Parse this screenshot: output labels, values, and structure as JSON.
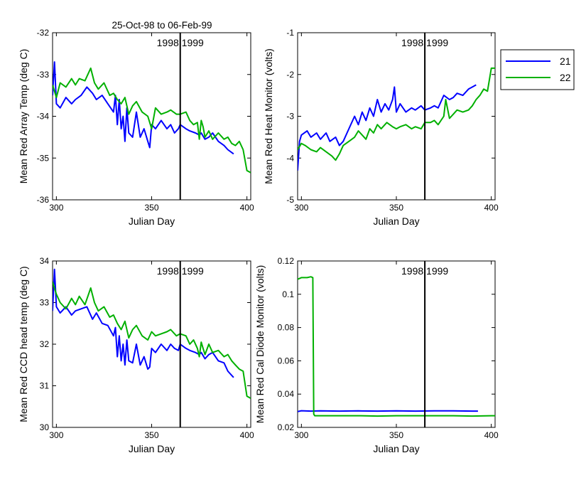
{
  "figure_title": "25-Oct-98 to 06-Feb-99",
  "legend": [
    {
      "label": "21",
      "color": "#0000ff"
    },
    {
      "label": "22",
      "color": "#00b000"
    }
  ],
  "chart_data": [
    {
      "type": "line",
      "xlabel": "Julian Day",
      "ylabel": "Mean Red Array Temp (deg C)",
      "xlim": [
        298,
        402
      ],
      "ylim": [
        -36,
        -32
      ],
      "xticks": [
        "300",
        "350",
        "400"
      ],
      "yticks": [
        "-36",
        "-35",
        "-34",
        "-33",
        "-32"
      ],
      "year_marker": {
        "x": 365,
        "label": "1998 1999"
      },
      "series": [
        {
          "name": "21",
          "color": "#0000ff",
          "x": [
            298,
            299,
            300,
            302,
            305,
            308,
            310,
            313,
            316,
            319,
            321,
            324,
            327,
            330,
            331,
            332,
            333,
            334,
            335,
            336,
            337,
            338,
            340,
            342,
            344,
            346,
            348,
            349,
            350,
            352,
            355,
            358,
            360,
            362,
            364,
            365,
            368,
            370,
            373,
            375,
            376,
            378,
            380,
            382,
            385,
            388,
            390,
            393
          ],
          "y": [
            -33.5,
            -32.7,
            -33.7,
            -33.8,
            -33.55,
            -33.7,
            -33.6,
            -33.5,
            -33.3,
            -33.45,
            -33.6,
            -33.5,
            -33.7,
            -33.9,
            -33.5,
            -34.2,
            -33.6,
            -34.3,
            -34.0,
            -34.6,
            -33.8,
            -34.4,
            -34.5,
            -33.9,
            -34.5,
            -34.3,
            -34.6,
            -34.75,
            -34.2,
            -34.3,
            -34.1,
            -34.3,
            -34.2,
            -34.4,
            -34.3,
            -34.2,
            -34.3,
            -34.35,
            -34.4,
            -34.45,
            -34.4,
            -34.55,
            -34.5,
            -34.4,
            -34.6,
            -34.7,
            -34.8,
            -34.9
          ]
        },
        {
          "name": "22",
          "color": "#00b000",
          "x": [
            298,
            300,
            302,
            305,
            308,
            310,
            312,
            315,
            318,
            320,
            322,
            325,
            328,
            330,
            332,
            334,
            336,
            338,
            340,
            342,
            345,
            348,
            350,
            352,
            355,
            358,
            360,
            363,
            365,
            368,
            370,
            372,
            374,
            375,
            376,
            377,
            378,
            380,
            382,
            385,
            388,
            390,
            392,
            394,
            396,
            398,
            400,
            402
          ],
          "y": [
            -33.25,
            -33.55,
            -33.2,
            -33.3,
            -33.1,
            -33.25,
            -33.1,
            -33.15,
            -32.85,
            -33.2,
            -33.35,
            -33.2,
            -33.5,
            -33.45,
            -33.6,
            -33.7,
            -33.55,
            -33.95,
            -33.75,
            -33.65,
            -33.9,
            -34.0,
            -34.3,
            -33.8,
            -33.95,
            -33.9,
            -33.85,
            -33.95,
            -33.95,
            -33.9,
            -34.1,
            -34.2,
            -34.15,
            -34.55,
            -34.1,
            -34.25,
            -34.5,
            -34.35,
            -34.55,
            -34.4,
            -34.55,
            -34.5,
            -34.65,
            -34.7,
            -34.6,
            -34.8,
            -35.3,
            -35.35
          ]
        }
      ]
    },
    {
      "type": "line",
      "xlabel": "Julian Day",
      "ylabel": "Mean Red Heat Monitor (volts)",
      "xlim": [
        298,
        402
      ],
      "ylim": [
        -5,
        -1
      ],
      "xticks": [
        "300",
        "350",
        "400"
      ],
      "yticks": [
        "-5",
        "-4",
        "-3",
        "-2",
        "-1"
      ],
      "year_marker": {
        "x": 365,
        "label": "1998 1999"
      },
      "series": [
        {
          "name": "21",
          "color": "#0000ff",
          "x": [
            298,
            299,
            300,
            303,
            305,
            308,
            310,
            313,
            315,
            318,
            320,
            322,
            325,
            328,
            330,
            332,
            334,
            336,
            338,
            340,
            342,
            344,
            346,
            348,
            349,
            350,
            352,
            355,
            358,
            360,
            363,
            365,
            368,
            370,
            372,
            375,
            378,
            380,
            382,
            385,
            388,
            390,
            392
          ],
          "y": [
            -4.3,
            -3.6,
            -3.45,
            -3.35,
            -3.5,
            -3.4,
            -3.55,
            -3.4,
            -3.6,
            -3.5,
            -3.7,
            -3.6,
            -3.3,
            -3.0,
            -3.2,
            -2.9,
            -3.1,
            -2.8,
            -3.0,
            -2.6,
            -2.9,
            -2.7,
            -2.85,
            -2.6,
            -2.3,
            -2.9,
            -2.7,
            -2.9,
            -2.8,
            -2.85,
            -2.75,
            -2.85,
            -2.8,
            -2.75,
            -2.8,
            -2.5,
            -2.6,
            -2.55,
            -2.45,
            -2.5,
            -2.35,
            -2.3,
            -2.25
          ]
        },
        {
          "name": "22",
          "color": "#00b000",
          "x": [
            298,
            300,
            302,
            305,
            308,
            310,
            313,
            316,
            318,
            320,
            322,
            325,
            328,
            330,
            332,
            334,
            336,
            338,
            340,
            342,
            345,
            348,
            350,
            352,
            355,
            358,
            360,
            363,
            365,
            368,
            370,
            372,
            375,
            376,
            378,
            380,
            382,
            385,
            388,
            390,
            392,
            394,
            396,
            398,
            400,
            402
          ],
          "y": [
            -3.8,
            -3.65,
            -3.7,
            -3.8,
            -3.85,
            -3.75,
            -3.85,
            -3.95,
            -4.05,
            -3.9,
            -3.7,
            -3.6,
            -3.5,
            -3.35,
            -3.45,
            -3.55,
            -3.3,
            -3.4,
            -3.2,
            -3.3,
            -3.15,
            -3.25,
            -3.3,
            -3.25,
            -3.2,
            -3.3,
            -3.25,
            -3.3,
            -3.15,
            -3.15,
            -3.1,
            -3.2,
            -3.0,
            -2.6,
            -3.05,
            -2.95,
            -2.85,
            -2.9,
            -2.85,
            -2.75,
            -2.6,
            -2.5,
            -2.35,
            -2.4,
            -1.85,
            -1.85
          ]
        }
      ]
    },
    {
      "type": "line",
      "xlabel": "Julian Day",
      "ylabel": "Mean Red CCD head temp (deg C)",
      "xlim": [
        298,
        402
      ],
      "ylim": [
        30,
        34
      ],
      "xticks": [
        "300",
        "350",
        "400"
      ],
      "yticks": [
        "30",
        "31",
        "32",
        "33",
        "34"
      ],
      "year_marker": {
        "x": 365,
        "label": "1998 1999"
      },
      "series": [
        {
          "name": "21",
          "color": "#0000ff",
          "x": [
            298,
            299,
            300,
            302,
            305,
            308,
            310,
            313,
            316,
            319,
            321,
            324,
            327,
            330,
            331,
            332,
            333,
            334,
            335,
            336,
            337,
            338,
            340,
            342,
            344,
            346,
            348,
            349,
            350,
            352,
            355,
            358,
            360,
            362,
            364,
            365,
            368,
            370,
            373,
            375,
            376,
            378,
            380,
            382,
            385,
            388,
            390,
            393
          ],
          "y": [
            32.8,
            33.8,
            32.9,
            32.75,
            32.9,
            32.7,
            32.8,
            32.85,
            32.9,
            32.6,
            32.75,
            32.5,
            32.45,
            32.2,
            32.4,
            31.7,
            32.2,
            31.6,
            32.0,
            31.5,
            32.1,
            31.6,
            31.55,
            32.0,
            31.5,
            31.7,
            31.4,
            31.45,
            31.9,
            31.8,
            32.0,
            31.85,
            32.0,
            31.9,
            31.85,
            32.0,
            31.9,
            31.85,
            31.8,
            31.75,
            31.8,
            31.65,
            31.75,
            31.8,
            31.6,
            31.55,
            31.35,
            31.2
          ]
        },
        {
          "name": "22",
          "color": "#00b000",
          "x": [
            298,
            300,
            302,
            305,
            308,
            310,
            312,
            315,
            318,
            320,
            322,
            325,
            328,
            330,
            332,
            334,
            336,
            338,
            340,
            342,
            345,
            348,
            350,
            352,
            355,
            358,
            360,
            363,
            365,
            368,
            370,
            372,
            374,
            375,
            376,
            377,
            378,
            380,
            382,
            385,
            388,
            390,
            392,
            394,
            396,
            398,
            400,
            402
          ],
          "y": [
            33.5,
            33.2,
            33.0,
            32.85,
            33.1,
            32.95,
            33.15,
            32.95,
            33.35,
            33.0,
            32.8,
            32.9,
            32.65,
            32.7,
            32.5,
            32.35,
            32.55,
            32.15,
            32.35,
            32.45,
            32.2,
            32.1,
            32.3,
            32.2,
            32.25,
            32.3,
            32.35,
            32.2,
            32.25,
            32.2,
            32.0,
            32.1,
            31.9,
            31.7,
            32.05,
            31.9,
            31.75,
            32.0,
            31.8,
            31.85,
            31.7,
            31.75,
            31.6,
            31.5,
            31.4,
            31.35,
            30.75,
            30.7
          ]
        }
      ]
    },
    {
      "type": "line",
      "xlabel": "Julian Day",
      "ylabel": "Mean Red Cal Diode Monitor (volts)",
      "xlim": [
        298,
        402
      ],
      "ylim": [
        0.02,
        0.12
      ],
      "xticks": [
        "300",
        "350",
        "400"
      ],
      "yticks": [
        "0.02",
        "0.04",
        "0.06",
        "0.08",
        "0.1",
        "0.12"
      ],
      "year_marker": {
        "x": 365,
        "label": "1998 1999"
      },
      "series": [
        {
          "name": "21",
          "color": "#0000ff",
          "x": [
            298,
            300,
            305,
            310,
            320,
            330,
            340,
            350,
            360,
            370,
            380,
            390,
            393
          ],
          "y": [
            0.0295,
            0.03,
            0.0298,
            0.0299,
            0.0298,
            0.0299,
            0.0298,
            0.0299,
            0.0298,
            0.0299,
            0.0299,
            0.0298,
            0.0298
          ]
        },
        {
          "name": "22",
          "color": "#00b000",
          "x": [
            298,
            300,
            303,
            305,
            306,
            306.5,
            307,
            310,
            320,
            330,
            340,
            350,
            360,
            370,
            380,
            390,
            400,
            402
          ],
          "y": [
            0.109,
            0.11,
            0.11,
            0.1105,
            0.11,
            0.028,
            0.027,
            0.027,
            0.027,
            0.027,
            0.0268,
            0.027,
            0.027,
            0.027,
            0.027,
            0.0268,
            0.027,
            0.027
          ]
        }
      ]
    }
  ]
}
